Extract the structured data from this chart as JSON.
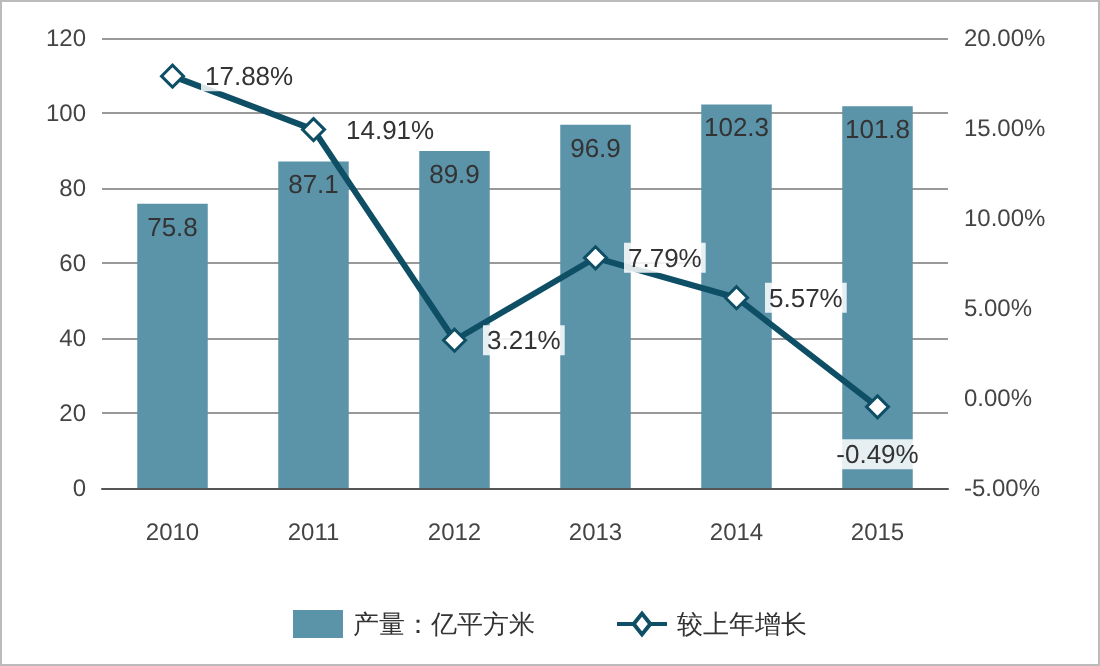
{
  "chart_data": {
    "type": "bar",
    "categories": [
      "2010",
      "2011",
      "2012",
      "2013",
      "2014",
      "2015"
    ],
    "series": [
      {
        "name": "产量：亿平方米",
        "color": "#5b93a9",
        "values": [
          75.8,
          87.1,
          89.9,
          96.9,
          102.3,
          101.8
        ],
        "value_labels": [
          "75.8",
          "87.1",
          "89.9",
          "96.9",
          "102.3",
          "101.8"
        ]
      },
      {
        "name": "较上年增长",
        "type": "line",
        "axis": "y2",
        "color": "#0e4f66",
        "marker": "diamond",
        "values": [
          17.88,
          14.91,
          3.21,
          7.79,
          5.57,
          -0.49
        ],
        "value_labels": [
          "17.88%",
          "14.91%",
          "3.21%",
          "7.79%",
          "5.57%",
          "-0.49%"
        ]
      }
    ],
    "ylim": [
      0,
      120
    ],
    "yticks": [
      0,
      20,
      40,
      60,
      80,
      100,
      120
    ],
    "y2lim": [
      -5,
      20
    ],
    "y2ticks": [
      {
        "value": -5,
        "label": "-5.00%"
      },
      {
        "value": 0,
        "label": "0.00%"
      },
      {
        "value": 5,
        "label": "5.00%"
      },
      {
        "value": 10,
        "label": "10.00%"
      },
      {
        "value": 15,
        "label": "15.00%"
      },
      {
        "value": 20,
        "label": "20.00%"
      }
    ],
    "grid": "y",
    "legend": "bottom"
  }
}
